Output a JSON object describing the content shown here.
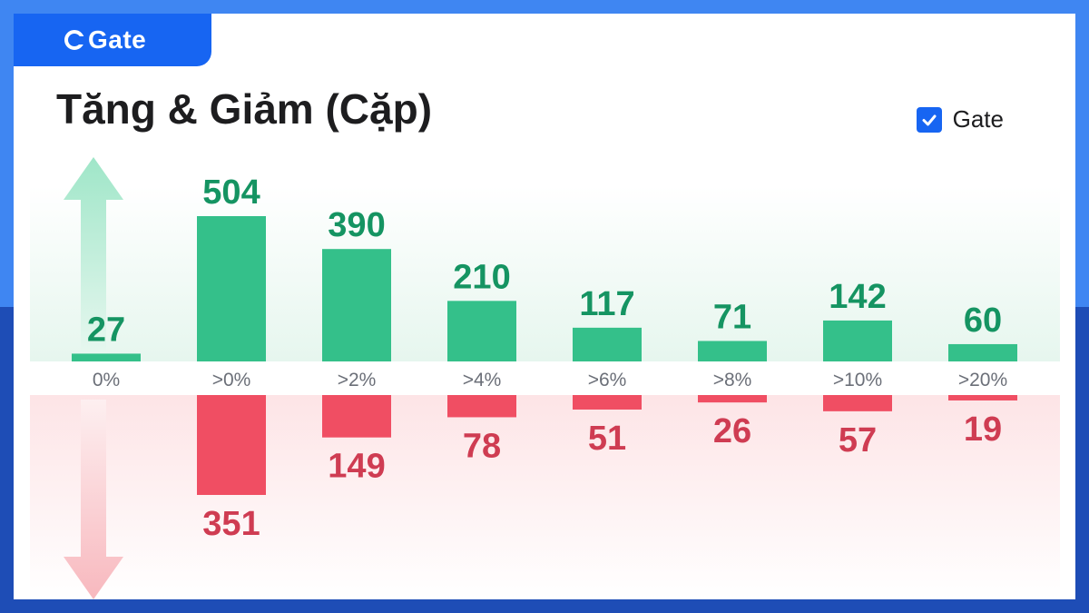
{
  "brand": {
    "logo_text": "Gate"
  },
  "title": "Tăng & Giảm (Cặp)",
  "legend": {
    "label": "Gate",
    "checked": true
  },
  "colors": {
    "up": "#34c08a",
    "up_text": "#159462",
    "down": "#f04e63",
    "down_text": "#cf3c52",
    "brand": "#1765f2"
  },
  "chart_data": {
    "type": "bar",
    "categories": [
      "0%",
      ">0%",
      ">2%",
      ">4%",
      ">6%",
      ">8%",
      ">10%",
      ">20%"
    ],
    "series": [
      {
        "values": [
          27,
          504,
          390,
          210,
          117,
          71,
          142,
          60
        ]
      },
      {
        "values": [
          null,
          351,
          149,
          78,
          51,
          26,
          57,
          19
        ]
      }
    ],
    "grid": false,
    "legend_position": "top-right"
  }
}
